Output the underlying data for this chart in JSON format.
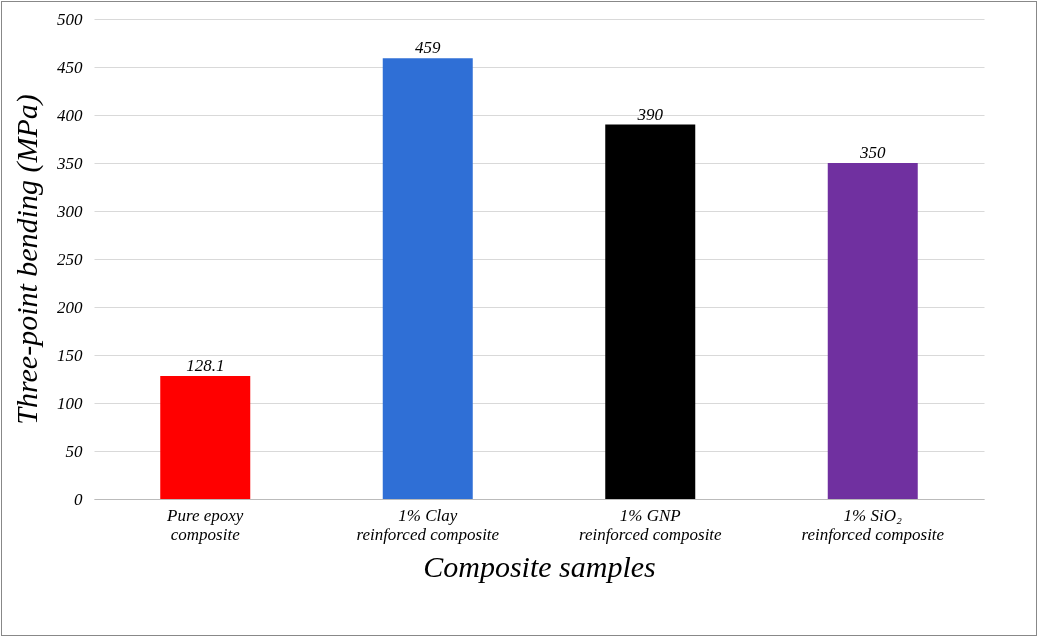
{
  "chart_data": {
    "type": "bar",
    "xlabel": "Composite samples",
    "ylabel": "Three-point bending (MPa)",
    "categories": [
      "Pure epoxy composite",
      "1% Clay reinforced composite",
      "1% GNP reinforced composite",
      "1% SiO₂ reinforced composite"
    ],
    "values": [
      128.1,
      459,
      390,
      350
    ],
    "colors": [
      "#ff0000",
      "#2f6fd6",
      "#000000",
      "#7030a0"
    ],
    "ylim": [
      0,
      500
    ],
    "yticks": [
      0,
      50,
      100,
      150,
      200,
      250,
      300,
      350,
      400,
      450,
      500
    ],
    "grid": "y",
    "data_labels": true
  }
}
